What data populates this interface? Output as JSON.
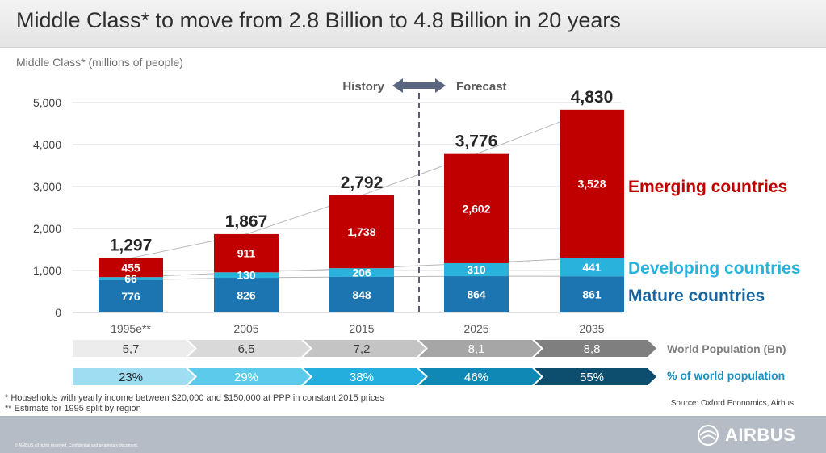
{
  "page": {
    "title": "Middle Class* to move from 2.8 Billion to 4.8 Billion in 20 years",
    "footnote_1": "* Households with yearly income between $20,000 and $150,000 at PPP in constant 2015 prices",
    "footnote_2": "** Estimate for 1995 split by region",
    "source": "Source: Oxford Economics, Airbus",
    "copyright": "© AIRBUS all rights reserved. Confidential and proprietary document.",
    "logo": "AIRBUS"
  },
  "colors": {
    "emerging": "#c00000",
    "developing": "#29b3dc",
    "mature": "#1c75b0",
    "label_emerging": "#c00000",
    "label_developing": "#29b3dc",
    "label_mature": "#17659e",
    "grid": "#d9d9d9",
    "trend": "#b7b7b7",
    "pop_row": [
      "#ececec",
      "#d9d9d9",
      "#c4c4c4",
      "#a6a6a6",
      "#7f7f7f"
    ],
    "share_row": [
      "#9fdef2",
      "#5ccaeb",
      "#23aede",
      "#0f88b6",
      "#0d4d6e"
    ]
  },
  "chart_data": {
    "type": "bar",
    "stacked": true,
    "title": "Middle Class* to move from 2.8 Billion to 4.8 Billion in 20 years",
    "ylabel": "Middle Class* (millions of  people)",
    "ylim": [
      0,
      5000
    ],
    "yticks": [
      "0",
      "1,000",
      "2,000",
      "3,000",
      "4,000",
      "5,000"
    ],
    "yticks_values": [
      0,
      1000,
      2000,
      3000,
      4000,
      5000
    ],
    "categories": [
      "1995e**",
      "2005",
      "2015",
      "2025",
      "2035"
    ],
    "series": [
      {
        "name": "Mature countries",
        "values": [
          776,
          826,
          848,
          864,
          861
        ],
        "labels": [
          "776",
          "826",
          "848",
          "864",
          "861"
        ]
      },
      {
        "name": "Developing countries",
        "values": [
          66,
          130,
          206,
          310,
          441
        ],
        "labels": [
          "66",
          "130",
          "206",
          "310",
          "441"
        ]
      },
      {
        "name": "Emerging countries",
        "values": [
          455,
          911,
          1738,
          2602,
          3528
        ],
        "labels": [
          "455",
          "911",
          "1,738",
          "2,602",
          "3,528"
        ]
      }
    ],
    "totals": [
      1297,
      1867,
      2792,
      3776,
      4830
    ],
    "total_labels": [
      "1,297",
      "1,867",
      "2,792",
      "3,776",
      "4,830"
    ],
    "history_label": "History",
    "forecast_label": "Forecast",
    "divider_after_category": "2015",
    "world_population": {
      "label": "World Population (Bn)",
      "values": [
        "5,7",
        "6,5",
        "7,2",
        "8,1",
        "8,8"
      ]
    },
    "share_of_world": {
      "label": "% of world population",
      "values": [
        "23%",
        "29%",
        "38%",
        "46%",
        "55%"
      ]
    },
    "grid": true,
    "legend": "right"
  }
}
